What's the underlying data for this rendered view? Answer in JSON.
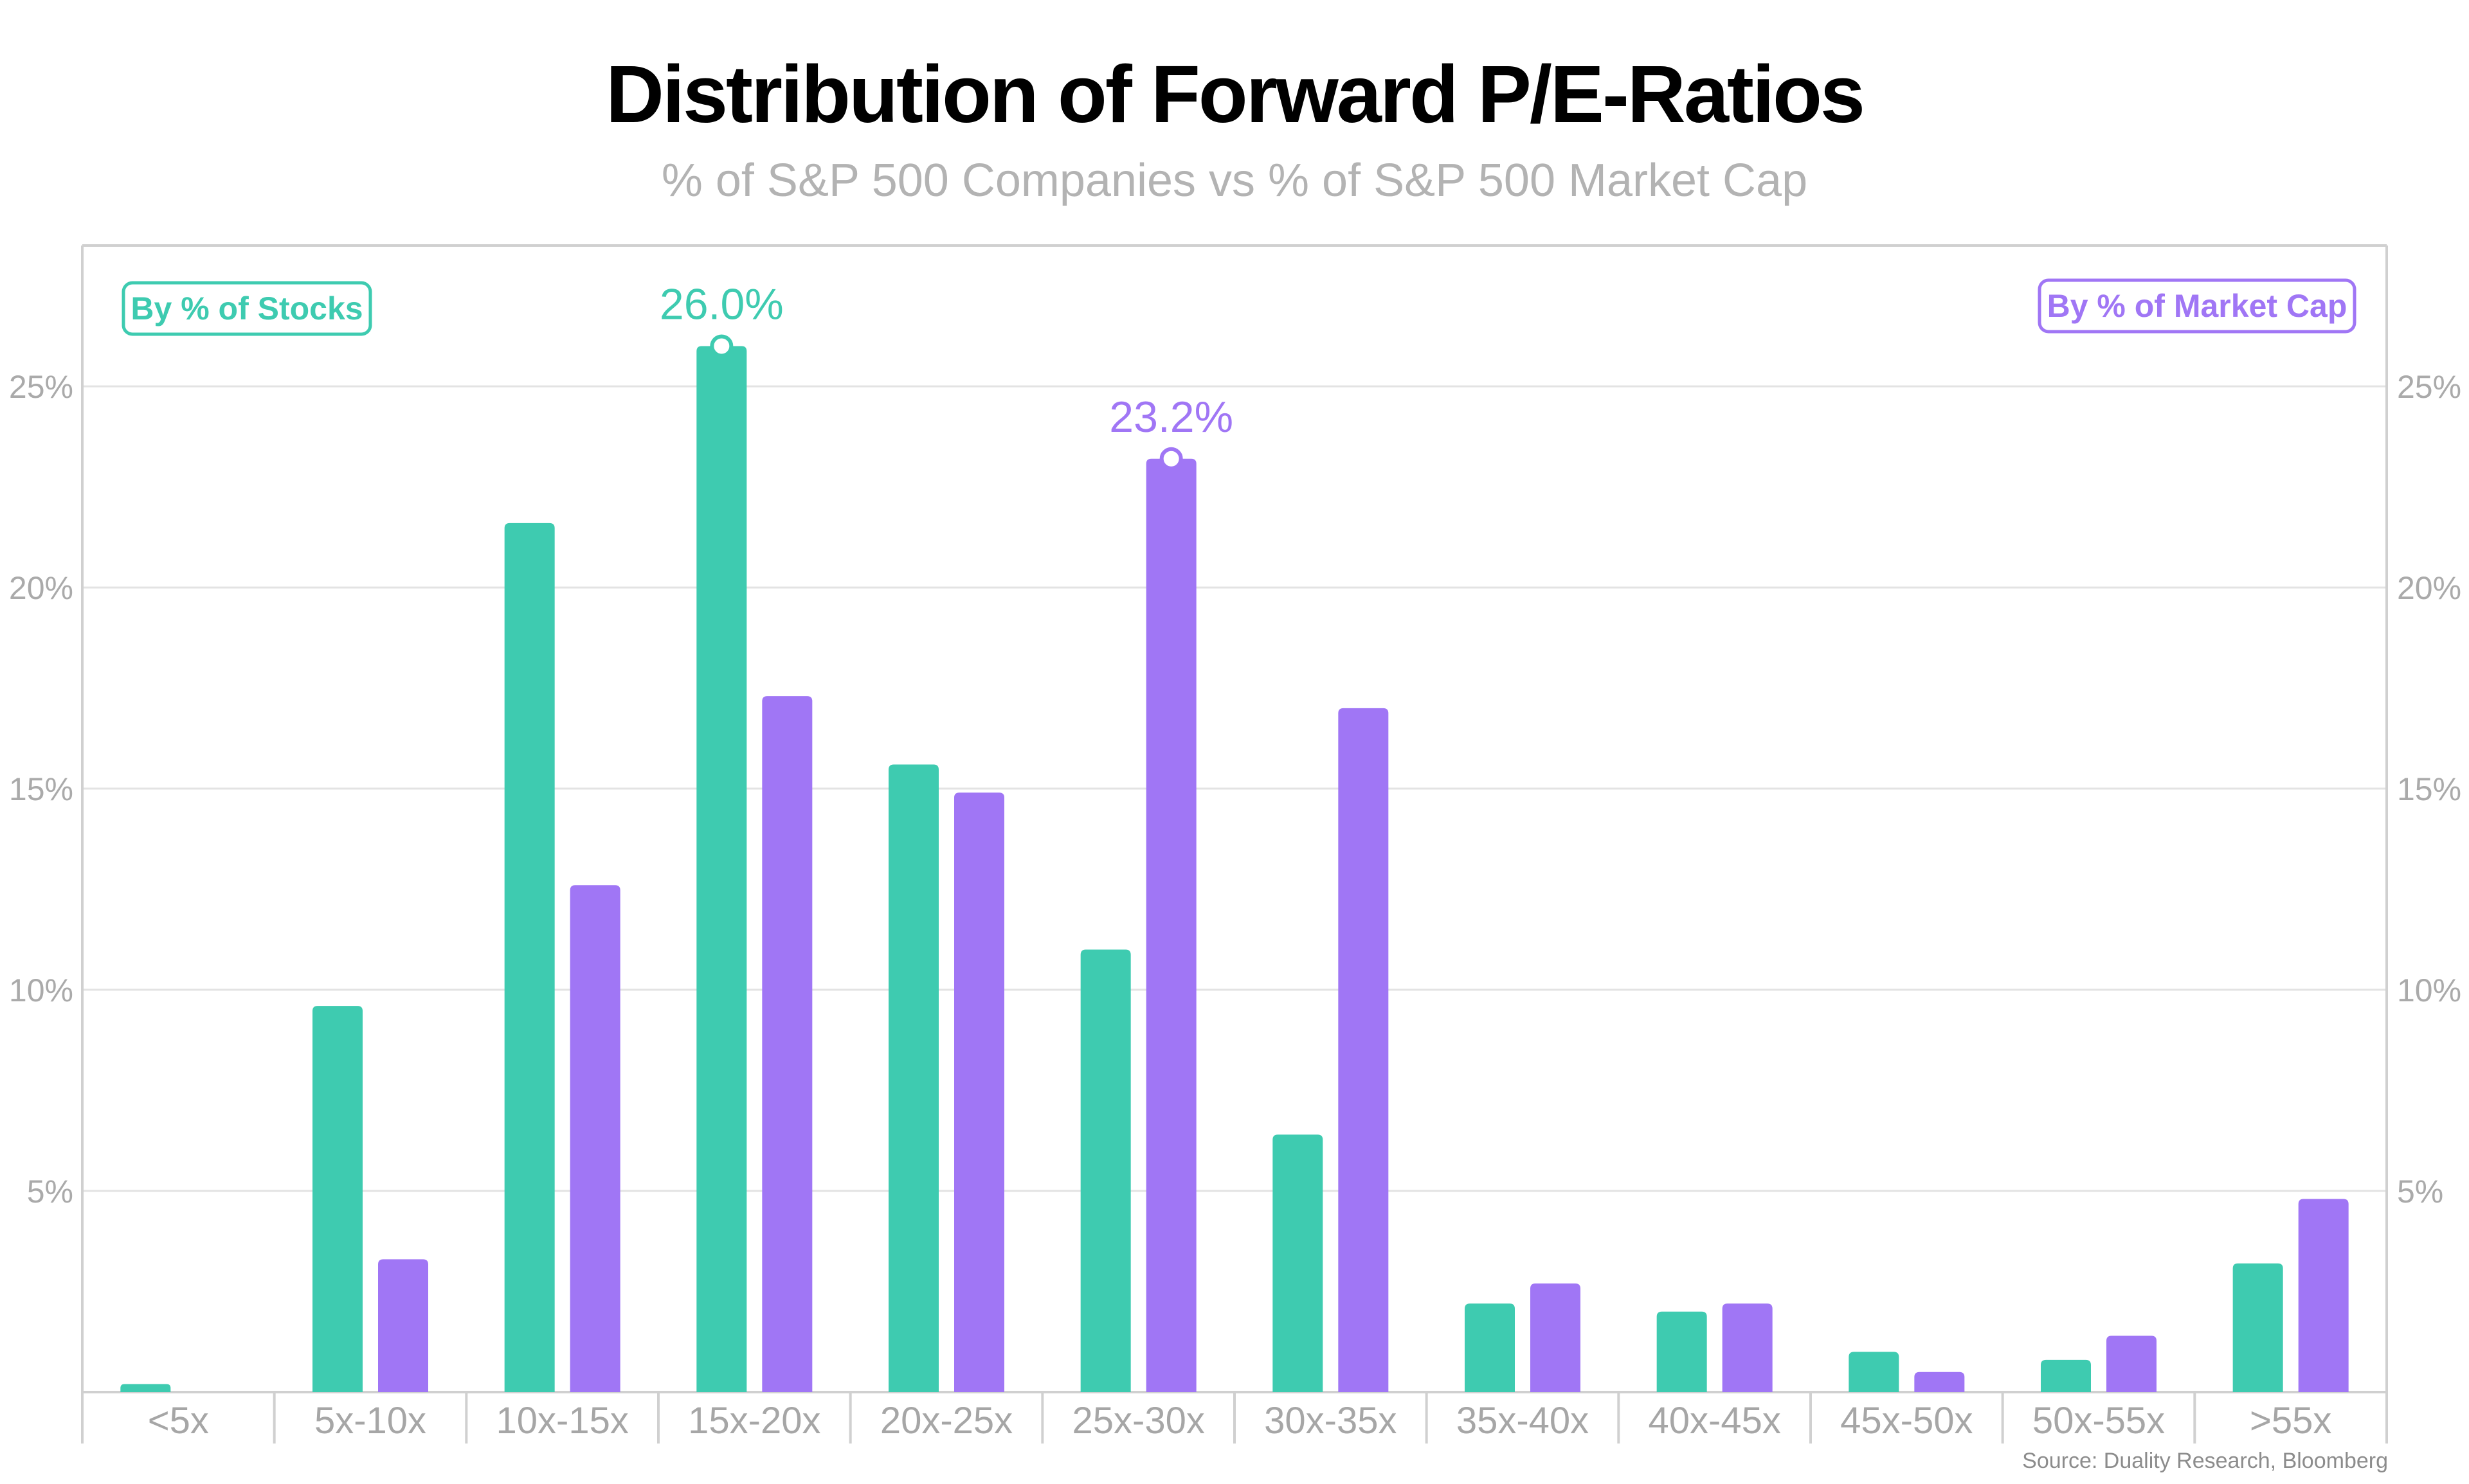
{
  "title": "Distribution of Forward P/E-Ratios",
  "subtitle": "% of S&P 500 Companies vs % of S&P 500 Market Cap",
  "source": "Source: Duality Research, Bloomberg",
  "colors": {
    "stocks": "#3ecbb0",
    "market_cap": "#a076f5",
    "grid": "#e3e3e3",
    "frame": "#d0d0d0"
  },
  "chart_data": {
    "type": "bar",
    "categories": [
      "<5x",
      "5x-10x",
      "10x-15x",
      "15x-20x",
      "20x-25x",
      "25x-30x",
      "30x-35x",
      "35x-40x",
      "40x-45x",
      "45x-50x",
      "50x-55x",
      ">55x"
    ],
    "series": [
      {
        "name": "By % of Stocks",
        "values": [
          0.2,
          9.6,
          21.6,
          26.0,
          15.6,
          11.0,
          6.4,
          2.2,
          2.0,
          1.0,
          0.8,
          3.2
        ]
      },
      {
        "name": "By % of Market Cap",
        "values": [
          0.0,
          3.3,
          12.6,
          17.3,
          14.9,
          23.2,
          17.0,
          2.7,
          2.2,
          0.5,
          1.4,
          4.8
        ]
      }
    ],
    "yticks": [
      "5%",
      "10%",
      "15%",
      "20%",
      "25%"
    ],
    "ylim": [
      0,
      28.5
    ],
    "annotations": [
      {
        "series": 0,
        "category": "15x-20x",
        "text": "26.0%"
      },
      {
        "series": 1,
        "category": "25x-30x",
        "text": "23.2%"
      }
    ],
    "grid": true,
    "legend_placement": "top-left and top-right"
  }
}
